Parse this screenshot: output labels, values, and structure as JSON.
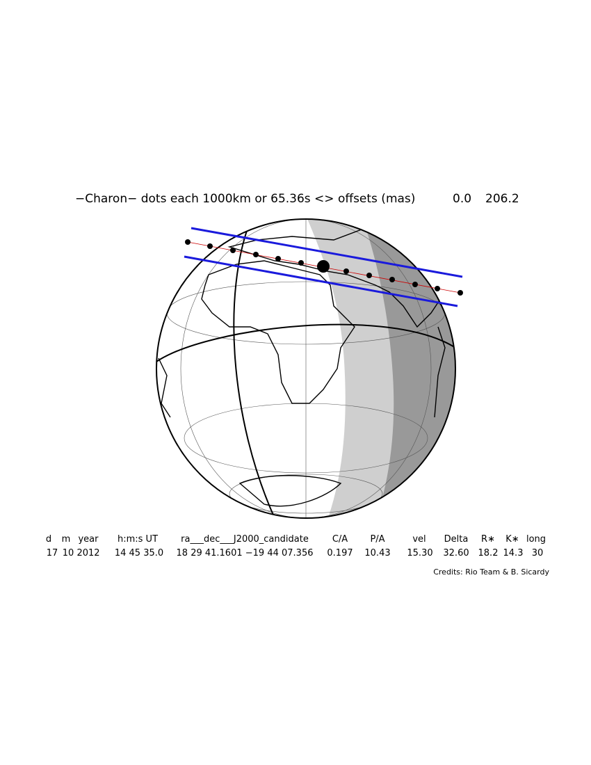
{
  "title": {
    "label": "−Charon−  dots each 1000km or 65.36s <> offsets (mas)",
    "offset_x": "0.0",
    "offset_y": "206.2"
  },
  "table": {
    "headers": [
      "d",
      "m",
      "year",
      "h:m:s UT",
      "ra___dec___J2000_candidate",
      "C/A",
      "P/A",
      "vel",
      "Delta",
      "R∗",
      "K∗",
      "long"
    ],
    "values": [
      "17",
      "10",
      "2012",
      "14 45 35.0",
      "18 29 41.1601 −19 44 07.356",
      "0.197",
      "10.43",
      "15.30",
      "32.60",
      "18.2",
      "14.3",
      "30"
    ]
  },
  "credits": "Credits: Rio Team & B. Sicardy"
}
